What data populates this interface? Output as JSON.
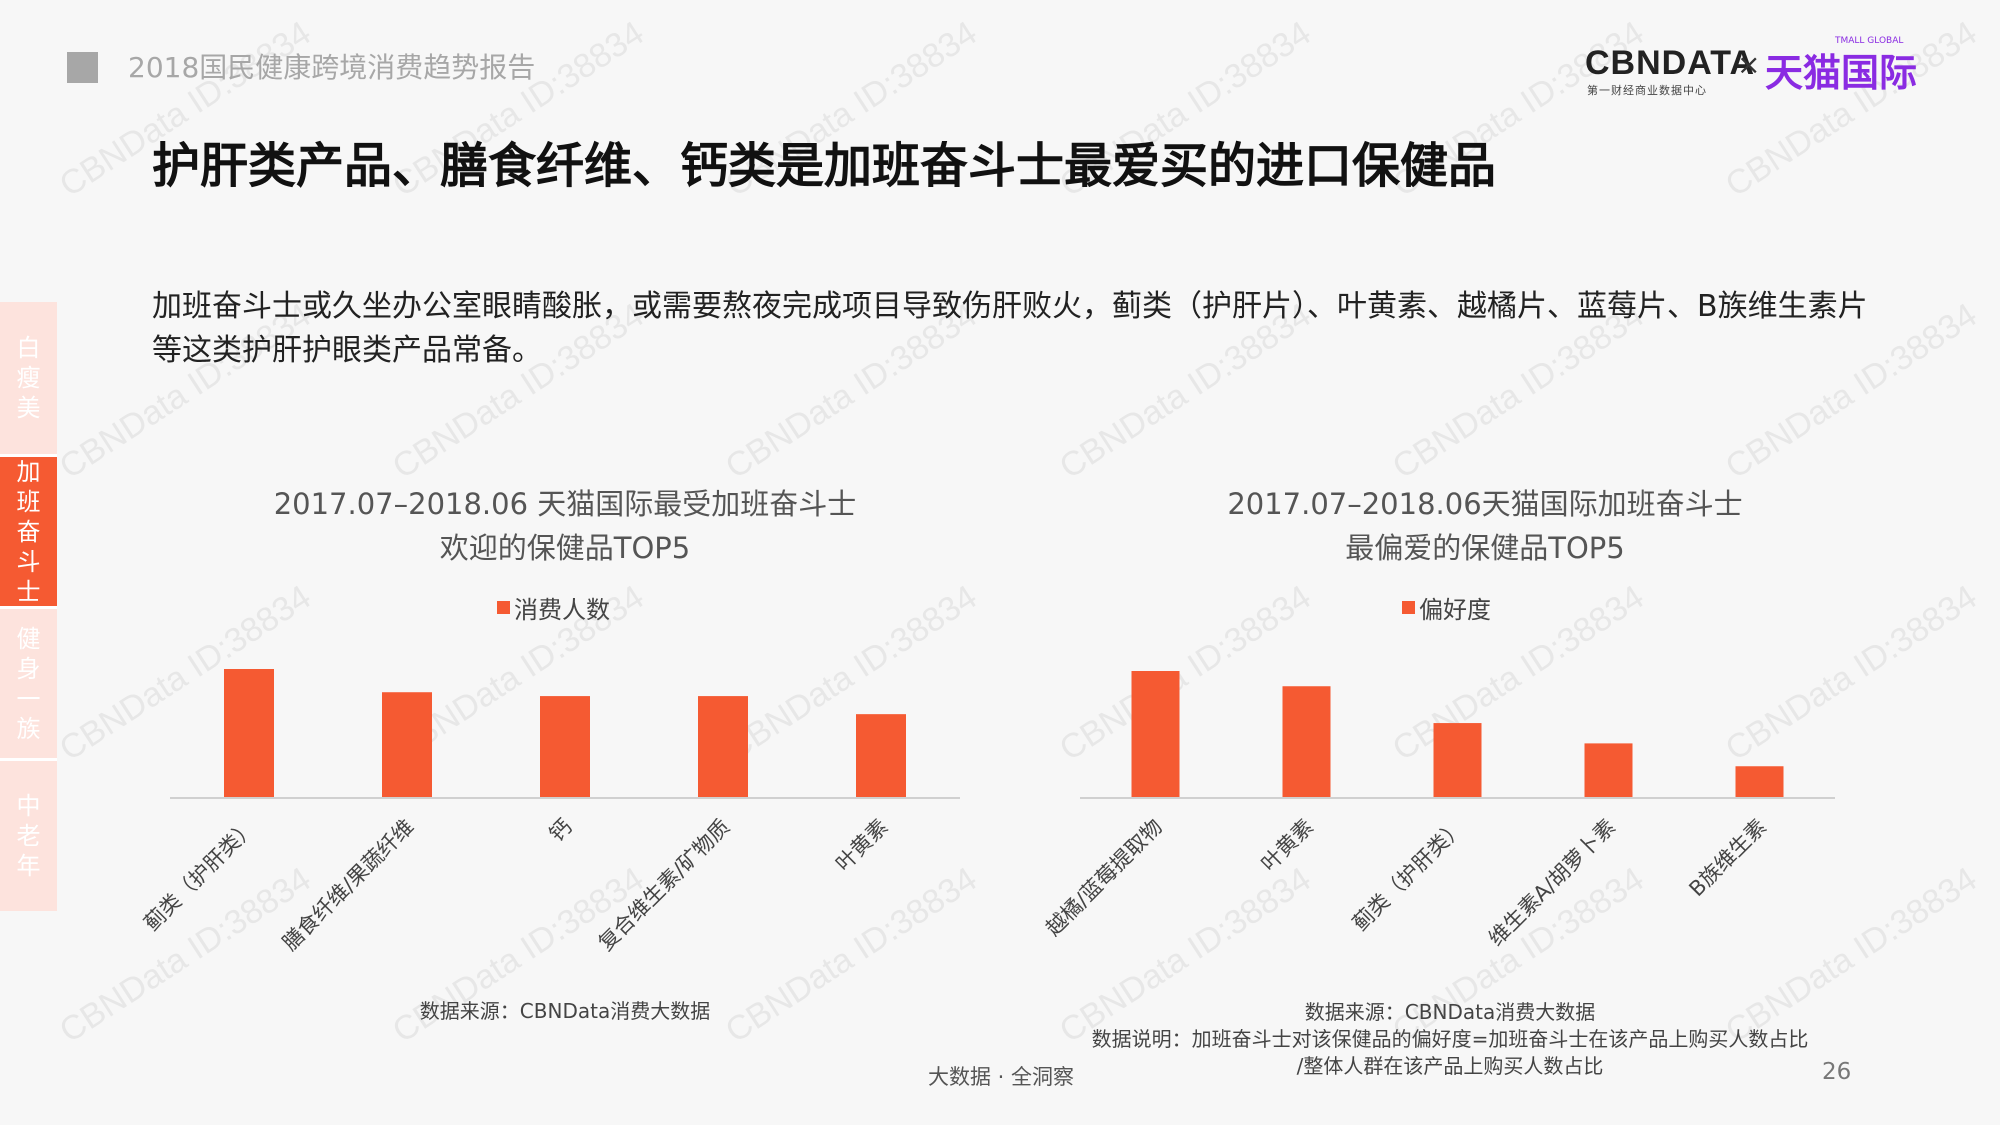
{
  "header": {
    "report_title": "2018国民健康跨境消费趋势报告"
  },
  "brand": {
    "cbndata": "CBNDATA",
    "cbndata_sub": "第一财经商业数据中心",
    "times": "×",
    "tmall": "天猫国际",
    "tmall_sub": "TMALL GLOBAL"
  },
  "main_heading": "护肝类产品、膳食纤维、钙类是加班奋斗士最爱买的进口保健品",
  "intro": "加班奋斗士或久坐办公室眼睛酸胀，或需要熬夜完成项目导致伤肝败火，蓟类（护肝片）、叶黄素、越橘片、蓝莓片、B族维生素片等这类护肝护眼类产品常备。",
  "side_nav": [
    {
      "label": "白瘦美",
      "active": false
    },
    {
      "label": "加班奋斗士",
      "active": true
    },
    {
      "label": "健身一族",
      "active": false
    },
    {
      "label": "中老年",
      "active": false
    }
  ],
  "colors": {
    "accent": "#f55a32",
    "nav_light": "#fde3dd",
    "axis": "#d0d0d0"
  },
  "chart_data": [
    {
      "type": "bar",
      "title_line1": "2017.07–2018.06 天猫国际最受加班奋斗士",
      "title_line2": "欢迎的保健品TOP5",
      "categories": [
        "蓟类（护肝类）",
        "膳食纤维/果蔬纤维",
        "钙",
        "复合维生素/矿物质",
        "叶黄素"
      ],
      "series": [
        {
          "name": "消费人数",
          "values": [
            100,
            82,
            79,
            79,
            65
          ]
        }
      ],
      "ylim": [
        0,
        100
      ],
      "grid": false,
      "legend_position": "top",
      "source": "数据来源：CBNData消费大数据"
    },
    {
      "type": "bar",
      "title_line1": "2017.07–2018.06天猫国际加班奋斗士",
      "title_line2": "最偏爱的保健品TOP5",
      "categories": [
        "越橘/蓝莓提取物",
        "叶黄素",
        "蓟类（护肝类）",
        "维生素A/胡萝卜素",
        "B族维生素"
      ],
      "series": [
        {
          "name": "偏好度",
          "values": [
            100,
            88,
            59,
            43,
            25
          ]
        }
      ],
      "ylim": [
        0,
        100
      ],
      "grid": false,
      "legend_position": "top",
      "source": "数据来源：CBNData消费大数据",
      "note_line1": "数据说明：加班奋斗士对该保健品的偏好度=加班奋斗士在该产品上购买人数占比",
      "note_line2": "/整体人群在该产品上购买人数占比"
    }
  ],
  "footer": {
    "center": "大数据 · 全洞察",
    "page": "26"
  },
  "watermark": "CBNData ID:38834"
}
